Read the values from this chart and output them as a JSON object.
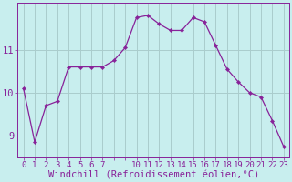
{
  "x": [
    0,
    1,
    2,
    3,
    4,
    5,
    6,
    7,
    8,
    9,
    10,
    11,
    12,
    13,
    14,
    15,
    16,
    17,
    18,
    19,
    20,
    21,
    22,
    23
  ],
  "y": [
    10.1,
    8.85,
    9.7,
    9.8,
    10.6,
    10.6,
    10.6,
    10.6,
    10.75,
    11.05,
    11.75,
    11.8,
    11.6,
    11.45,
    11.45,
    11.75,
    11.65,
    11.1,
    10.55,
    10.25,
    10.0,
    9.9,
    9.35,
    8.75
  ],
  "line_color": "#882299",
  "marker_color": "#882299",
  "bg_color": "#c8eeee",
  "grid_color": "#aacccc",
  "xlabel": "Windchill (Refroidissement éolien,°C)",
  "xlabel_color": "#882299",
  "yticks": [
    9,
    10,
    11
  ],
  "xtick_labels": [
    "0",
    "1",
    "2",
    "3",
    "4",
    "5",
    "6",
    "7",
    "",
    "",
    "10",
    "11",
    "12",
    "13",
    "14",
    "15",
    "16",
    "17",
    "18",
    "19",
    "20",
    "21",
    "22",
    "23"
  ],
  "xlim": [
    -0.5,
    23.5
  ],
  "ylim": [
    8.5,
    12.1
  ],
  "tick_color": "#882299",
  "tick_fontsize": 6.5,
  "xlabel_fontsize": 7.5
}
